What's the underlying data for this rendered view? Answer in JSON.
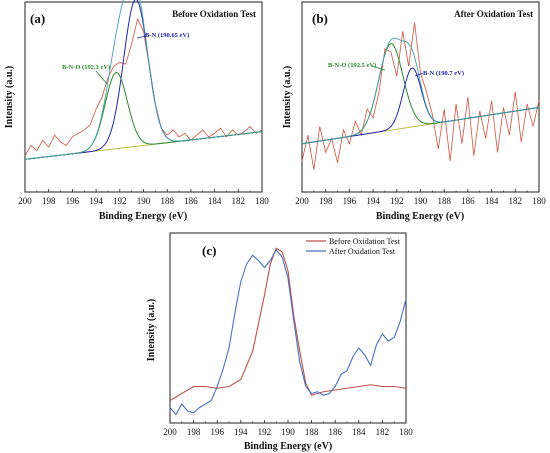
{
  "chart_data": [
    {
      "type": "line",
      "panel_label": "(a)",
      "title": "Before Oxidation Test",
      "xlabel": "Binding Energy (eV)",
      "ylabel": "Intensity (a.u.)",
      "xlim": [
        200,
        180
      ],
      "x_ticks": [
        "200",
        "198",
        "196",
        "194",
        "192",
        "190",
        "188",
        "186",
        "184",
        "182",
        "180"
      ],
      "ylim": [
        0,
        100
      ],
      "annotations": [
        {
          "text": "B-N (190.65 eV)",
          "color": "#2323b0",
          "x": 190.65
        },
        {
          "text": "B-N-O (192.3 eV)",
          "color": "#2a8a2a",
          "x": 192.3
        }
      ],
      "series": [
        {
          "role": "raw",
          "color": "#d0553f",
          "x": [
            200,
            199.5,
            199,
            198.5,
            198,
            197.5,
            197,
            196.5,
            196,
            195.5,
            195,
            194.5,
            194,
            193.5,
            193,
            192.5,
            192,
            191.5,
            191,
            190.5,
            190,
            189.5,
            189,
            188.5,
            188,
            187.5,
            187,
            186.5,
            186,
            185.5,
            185,
            184.5,
            184,
            183.5,
            183,
            182.5,
            182,
            181.5,
            181,
            180.5,
            180
          ],
          "y": [
            18,
            24,
            21,
            27,
            23,
            30,
            26,
            24,
            29,
            31,
            33,
            36,
            45,
            52,
            63,
            70,
            72,
            71,
            83,
            97,
            90,
            70,
            48,
            34,
            30,
            33,
            29,
            31,
            27,
            30,
            33,
            29,
            31,
            34,
            29,
            33,
            30,
            32,
            35,
            31,
            33
          ]
        },
        {
          "role": "peak",
          "name": "B-N",
          "color": "#2323b0",
          "center": 190.65,
          "height": 85,
          "fwhm": 2.4
        },
        {
          "role": "peak",
          "name": "B-N-O",
          "color": "#2a8a2a",
          "center": 192.3,
          "height": 44,
          "fwhm": 2.2
        },
        {
          "role": "baseline",
          "color": "#b8b830",
          "y_start": 16,
          "y_end": 32
        }
      ]
    },
    {
      "type": "line",
      "panel_label": "(b)",
      "title": "After Oxidation Test",
      "xlabel": "Binding Energy (eV)",
      "ylabel": "Intensity (a.u.)",
      "xlim": [
        200,
        180
      ],
      "x_ticks": [
        "200",
        "198",
        "196",
        "194",
        "192",
        "190",
        "188",
        "186",
        "184",
        "182",
        "180"
      ],
      "ylim": [
        0,
        100
      ],
      "annotations": [
        {
          "text": "B-N-O (192.5 eV)",
          "color": "#2a8a2a",
          "x": 192.5
        },
        {
          "text": "B-N (190.7 eV)",
          "color": "#2323b0",
          "x": 190.7
        }
      ],
      "series": [
        {
          "role": "raw",
          "color": "#d0553f",
          "x": [
            200,
            199.5,
            199,
            198.5,
            198,
            197.5,
            197,
            196.5,
            196,
            195.5,
            195,
            194.5,
            194,
            193.5,
            193,
            192.5,
            192,
            191.5,
            191,
            190.5,
            190,
            189.5,
            189,
            188.5,
            188,
            187.5,
            187,
            186.5,
            186,
            185.5,
            185,
            184.5,
            184,
            183.5,
            183,
            182.5,
            182,
            181.5,
            181,
            180.5,
            180
          ],
          "y": [
            15,
            30,
            10,
            35,
            20,
            28,
            14,
            33,
            25,
            38,
            30,
            45,
            40,
            55,
            80,
            78,
            64,
            90,
            70,
            95,
            66,
            55,
            42,
            22,
            45,
            15,
            48,
            25,
            52,
            18,
            44,
            28,
            50,
            20,
            46,
            30,
            55,
            26,
            48,
            35,
            50
          ]
        },
        {
          "role": "peak",
          "name": "B-N-O",
          "color": "#2a8a2a",
          "center": 192.5,
          "height": 50,
          "fwhm": 2.4
        },
        {
          "role": "peak",
          "name": "B-N",
          "color": "#2323b0",
          "center": 190.7,
          "height": 34,
          "fwhm": 1.8
        },
        {
          "role": "baseline",
          "color": "#b8b830",
          "y_start": 25,
          "y_end": 46
        }
      ]
    },
    {
      "type": "line",
      "panel_label": "(c)",
      "xlabel": "Binding Energy (eV)",
      "ylabel": "Intensity (a.u.)",
      "xlim": [
        200,
        180
      ],
      "x_ticks": [
        "200",
        "198",
        "196",
        "194",
        "192",
        "190",
        "188",
        "186",
        "184",
        "182",
        "180"
      ],
      "ylim": [
        0,
        100
      ],
      "legend_position": "top-right",
      "series": [
        {
          "name": "Before Oxidation Test",
          "color": "#c0504d",
          "x": [
            200,
            199,
            198,
            197,
            196,
            195,
            194,
            193,
            192,
            191.5,
            191,
            190.5,
            190,
            189.5,
            189,
            188.5,
            188,
            187,
            186,
            185,
            184,
            183,
            182,
            181,
            180
          ],
          "y": [
            10,
            14,
            18,
            18,
            17,
            18,
            22,
            38,
            70,
            88,
            97,
            95,
            84,
            58,
            38,
            20,
            13,
            15,
            16,
            17,
            18,
            19,
            18,
            18,
            17
          ]
        },
        {
          "name": "After Oxidation Test",
          "color": "#4a72c4",
          "x": [
            200,
            199.5,
            199,
            198.5,
            198,
            197.5,
            197,
            196.5,
            196,
            195.5,
            195,
            194.5,
            194,
            193.5,
            193,
            192.5,
            192,
            191.5,
            191,
            190.5,
            190,
            189.5,
            189,
            188.5,
            188,
            187.5,
            187,
            186.5,
            186,
            185.5,
            185,
            184.5,
            184,
            183.5,
            183,
            182.5,
            182,
            181.5,
            181,
            180.5,
            180
          ],
          "y": [
            6,
            2,
            8,
            4,
            3,
            6,
            8,
            10,
            18,
            28,
            40,
            60,
            78,
            88,
            93,
            90,
            86,
            90,
            96,
            92,
            80,
            55,
            32,
            18,
            14,
            15,
            13,
            14,
            18,
            25,
            27,
            35,
            40,
            36,
            30,
            42,
            48,
            44,
            46,
            55,
            68
          ]
        }
      ]
    }
  ]
}
